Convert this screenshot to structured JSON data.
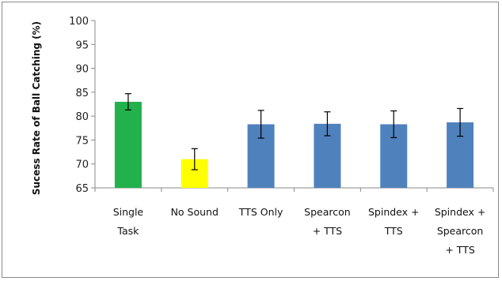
{
  "chart_data": {
    "type": "bar",
    "title": "",
    "xlabel": "",
    "ylabel": "Sucess Rate of Ball Catching (%)",
    "ylim": [
      65,
      100
    ],
    "yticks": [
      65,
      70,
      75,
      80,
      85,
      90,
      95,
      100
    ],
    "grid": false,
    "categories": [
      [
        "Single",
        "Task"
      ],
      [
        "No Sound"
      ],
      [
        "TTS Only"
      ],
      [
        "Spearcon",
        "+ TTS"
      ],
      [
        "Spindex +",
        "TTS"
      ],
      [
        "Spindex +",
        "Spearcon",
        "+ TTS"
      ]
    ],
    "values": [
      83.0,
      71.0,
      78.3,
      78.4,
      78.3,
      78.7
    ],
    "error": [
      1.7,
      2.2,
      2.9,
      2.5,
      2.8,
      2.9
    ],
    "colors": [
      "#22b14c",
      "#ffff00",
      "#4f81bd",
      "#4f81bd",
      "#4f81bd",
      "#4f81bd"
    ]
  }
}
